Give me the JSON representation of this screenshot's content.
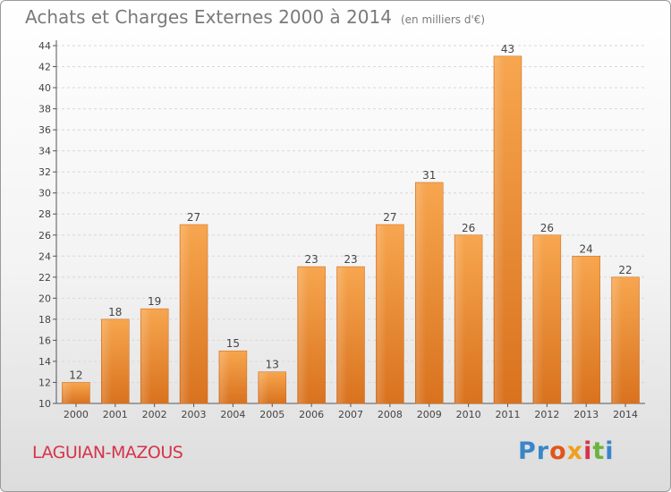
{
  "chart_data": {
    "type": "bar",
    "title": "Achats et Charges Externes 2000 à 2014",
    "subtitle": "(en milliers d'€)",
    "categories": [
      "2000",
      "2001",
      "2002",
      "2003",
      "2004",
      "2005",
      "2006",
      "2007",
      "2008",
      "2009",
      "2010",
      "2011",
      "2012",
      "2013",
      "2014"
    ],
    "values": [
      12,
      18,
      19,
      27,
      15,
      13,
      23,
      23,
      27,
      31,
      26,
      43,
      26,
      24,
      22
    ],
    "ylim": [
      10,
      44
    ],
    "yticks": [
      10,
      12,
      14,
      16,
      18,
      20,
      22,
      24,
      26,
      28,
      30,
      32,
      34,
      36,
      38,
      40,
      42,
      44
    ],
    "xlabel": "",
    "ylabel": "",
    "grid": true,
    "bar_color": "#f0953a"
  },
  "footer": {
    "commune": "LAGUIAN-MAZOUS",
    "logo": [
      "Pr",
      "o",
      "x",
      "i",
      "t",
      "i"
    ]
  }
}
